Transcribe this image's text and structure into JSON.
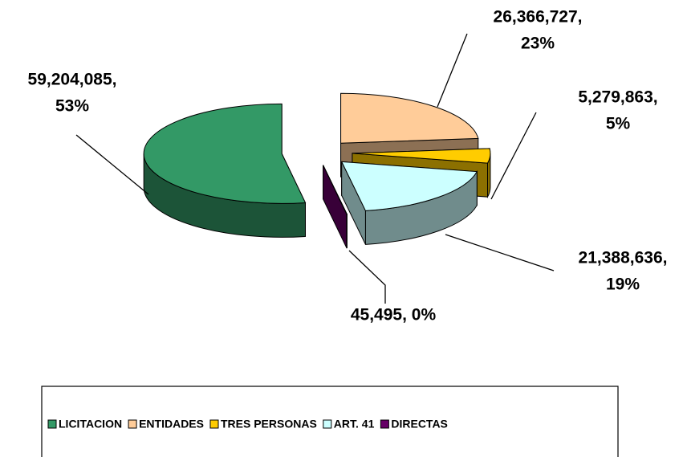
{
  "chart_data": {
    "type": "pie",
    "categories": [
      "LICITACION",
      "ENTIDADES",
      "TRES PERSONAS",
      "ART. 41",
      "DIRECTAS"
    ],
    "values": [
      59204085,
      26366727,
      5279863,
      21388636,
      45495
    ],
    "value_labels": [
      [
        "59,204,085,",
        "53%"
      ],
      [
        "26,366,727,",
        "23%"
      ],
      [
        "5,279,863,",
        "5%"
      ],
      [
        "21,388,636,",
        "19%"
      ],
      [
        "45,495, 0%"
      ]
    ],
    "colors": [
      "#339966",
      "#FFCC99",
      "#FFCC00",
      "#CCFFFF",
      "#660066"
    ],
    "legend": "bottom"
  }
}
